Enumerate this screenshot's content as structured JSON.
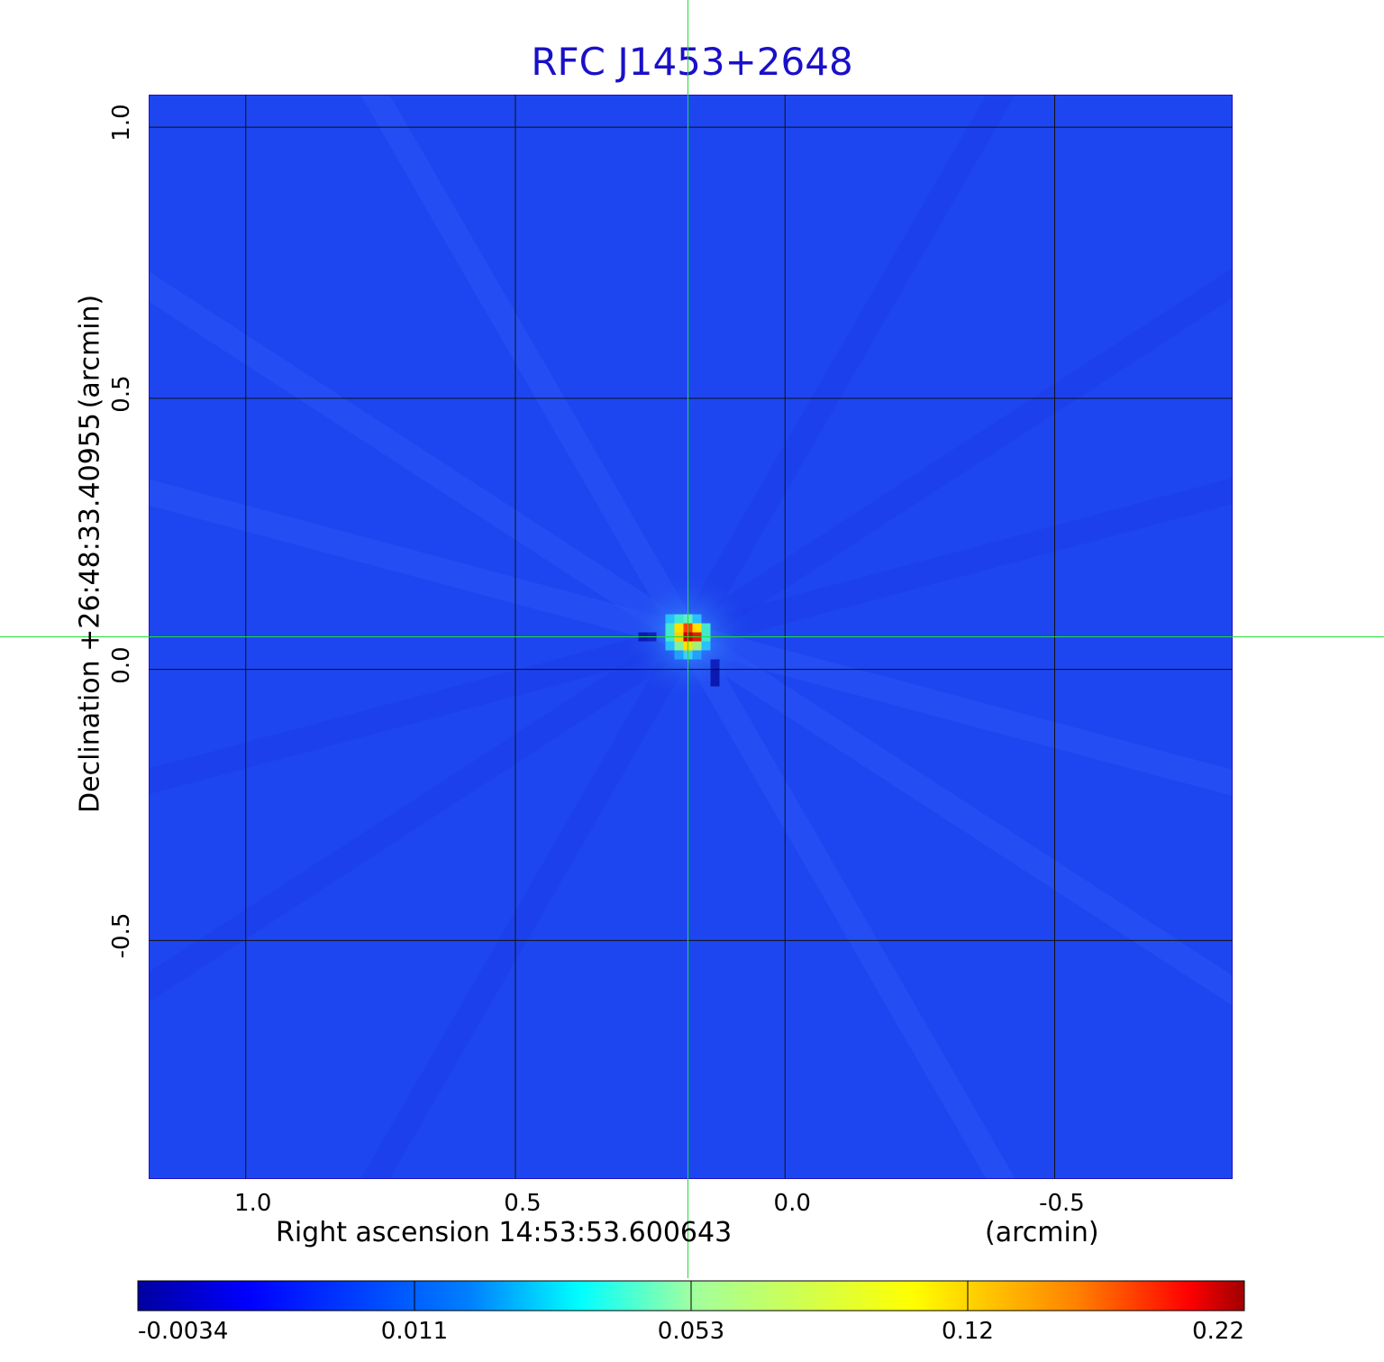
{
  "chart_data": {
    "type": "heatmap",
    "title": "RFC J1453+2648",
    "xlabel": "Right ascension  14:53:53.600643",
    "xunit": "(arcmin)",
    "ylabel": "Declination  +26:48:33.40955",
    "yunit": "(arcmin)",
    "xlim": [
      1.18,
      -0.83
    ],
    "ylim": [
      -0.94,
      1.06
    ],
    "x_ticks": [
      1.0,
      0.5,
      0.0,
      -0.5
    ],
    "x_tick_labels": [
      "1.0",
      "0.5",
      "0.0",
      "-0.5"
    ],
    "y_ticks": [
      1.0,
      0.5,
      0.0,
      -0.5
    ],
    "y_tick_labels": [
      "1.0",
      "0.5",
      "0.0",
      "-0.5"
    ],
    "grid": true,
    "peak": {
      "x": 0.18,
      "y": 0.06,
      "value": 0.22
    },
    "crosshair": {
      "x": 0.18,
      "y": 0.06
    },
    "colorbar": {
      "ticks": [
        -0.0034,
        0.011,
        0.053,
        0.12,
        0.22
      ],
      "tick_labels": [
        "-0.0034",
        "0.011",
        "0.053",
        "0.12",
        "0.22"
      ],
      "colormap": "jet"
    },
    "colors": {
      "title": "#1a10c8",
      "background_map": "#1e46f0",
      "grid": "#111111",
      "crosshair": "#22dd33"
    }
  }
}
